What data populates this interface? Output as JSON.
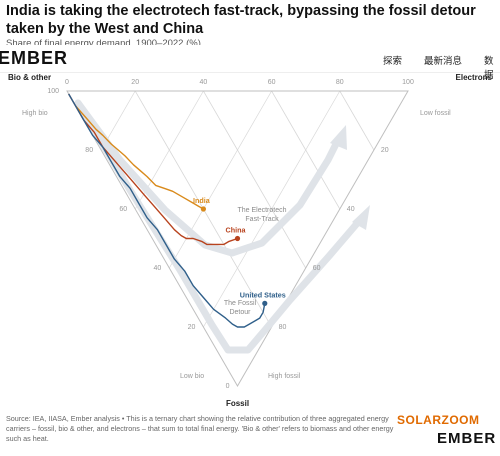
{
  "header": {
    "title": "India is taking the electrotech fast-track, bypassing the fossil detour taken by the West and China",
    "subtitle": "Share of final energy demand, 1900–2022 (%)"
  },
  "nav": {
    "logo": "EMBER",
    "items": [
      "探索",
      "最新消息",
      "数据"
    ]
  },
  "chart_data": {
    "type": "ternary",
    "axes": {
      "left": {
        "label": "Bio & other",
        "corner_note": "High bio",
        "low_note": "Low bio"
      },
      "right": {
        "label": "Electrons",
        "corner_note": "Low fossil",
        "low_note": "High fossil"
      },
      "bottom": {
        "label": "Fossil"
      }
    },
    "top_ticks": [
      "0",
      "20",
      "40",
      "60",
      "80",
      "100"
    ],
    "left_ticks": [
      "100",
      "80",
      "60",
      "40",
      "20",
      "0"
    ],
    "right_ticks": [
      "20",
      "40",
      "60",
      "80"
    ],
    "annotations": [
      "The Electrotech Fast-Track",
      "The Fossil Detour"
    ],
    "series": [
      {
        "name": "India",
        "color": "#d98a1b",
        "points": [
          [
            95,
            0
          ],
          [
            90,
            1
          ],
          [
            85,
            2
          ],
          [
            82,
            3
          ],
          [
            78,
            4
          ],
          [
            75,
            5
          ],
          [
            72,
            6
          ],
          [
            68,
            7
          ],
          [
            65,
            8
          ],
          [
            62,
            9
          ],
          [
            58,
            10
          ],
          [
            55,
            12
          ],
          [
            52,
            14
          ],
          [
            48,
            16
          ],
          [
            44,
            18
          ],
          [
            42,
            19
          ],
          [
            40,
            20
          ]
        ]
      },
      {
        "name": "China",
        "color": "#b8431e",
        "points": [
          [
            99,
            0
          ],
          [
            95,
            0
          ],
          [
            90,
            0
          ],
          [
            85,
            1
          ],
          [
            80,
            1
          ],
          [
            75,
            2
          ],
          [
            70,
            3
          ],
          [
            65,
            4
          ],
          [
            60,
            5
          ],
          [
            55,
            6
          ],
          [
            50,
            7
          ],
          [
            45,
            8
          ],
          [
            42,
            9
          ],
          [
            40,
            10
          ],
          [
            38,
            12
          ],
          [
            35,
            14
          ],
          [
            33,
            15
          ],
          [
            32,
            16
          ],
          [
            30,
            18
          ],
          [
            28,
            20
          ],
          [
            27,
            22
          ],
          [
            25,
            25
          ]
        ]
      },
      {
        "name": "United States",
        "color": "#2f5f8a",
        "points": [
          [
            99,
            0
          ],
          [
            95,
            0
          ],
          [
            90,
            0
          ],
          [
            85,
            0
          ],
          [
            80,
            1
          ],
          [
            75,
            1
          ],
          [
            70,
            1
          ],
          [
            65,
            2
          ],
          [
            60,
            2
          ],
          [
            55,
            2
          ],
          [
            50,
            3
          ],
          [
            45,
            3
          ],
          [
            40,
            3
          ],
          [
            35,
            4
          ],
          [
            30,
            4
          ],
          [
            25,
            5
          ],
          [
            20,
            6
          ],
          [
            15,
            8
          ],
          [
            12,
            9
          ],
          [
            10,
            10
          ],
          [
            8,
            12
          ],
          [
            7,
            14
          ],
          [
            6,
            16
          ],
          [
            5,
            18
          ],
          [
            5,
            20
          ],
          [
            6,
            22
          ]
        ]
      }
    ]
  },
  "footer": {
    "source": "Source: IEA, IIASA, Ember analysis • This is a ternary chart showing the relative contribution of three aggregated energy carriers – fossil, bio & other, and electrons – that sum to total final energy. 'Bio & other' refers to biomass and other energy such as heat.",
    "watermark": "SOLARZOOM",
    "logo": "EMBER"
  },
  "colors": {
    "india": "#d98a1b",
    "china": "#b8431e",
    "us": "#2f5f8a",
    "grid": "#d9d9d9",
    "arrow": "#dfe3e8"
  }
}
